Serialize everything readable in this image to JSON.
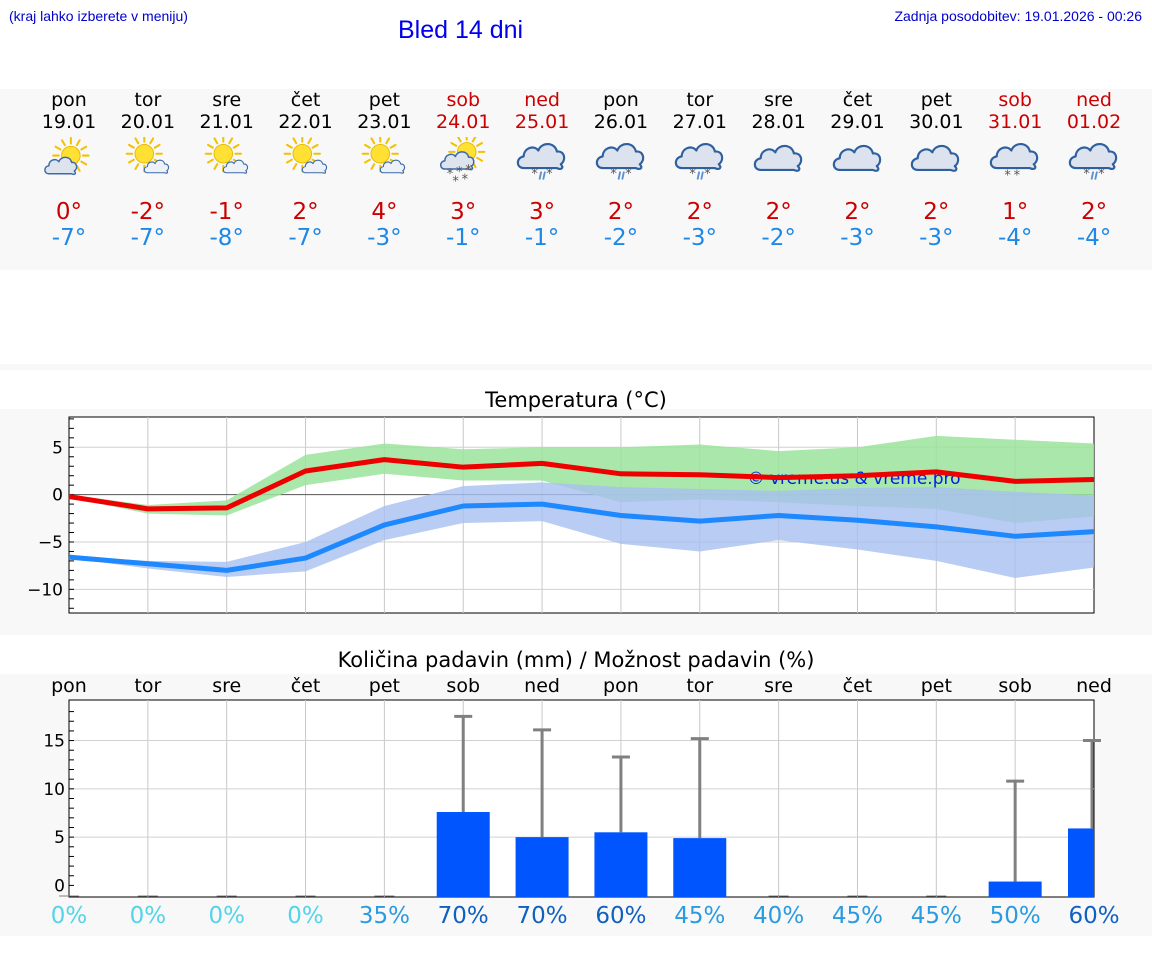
{
  "header": {
    "left_note": "(kraj lahko izberete v meniju)",
    "title": "Bled 14 dni",
    "updated": "Zadnja posodobitev: 19.01.2026 - 00:26"
  },
  "days": [
    {
      "name": "pon",
      "date": "19.01",
      "icon": "partly-sunny-icon",
      "tmax": "0°",
      "tmin": "-7°",
      "weekend": false
    },
    {
      "name": "tor",
      "date": "20.01",
      "icon": "mostly-sunny-icon",
      "tmax": "-2°",
      "tmin": "-7°",
      "weekend": false
    },
    {
      "name": "sre",
      "date": "21.01",
      "icon": "mostly-sunny-icon",
      "tmax": "-1°",
      "tmin": "-8°",
      "weekend": false
    },
    {
      "name": "čet",
      "date": "22.01",
      "icon": "mostly-sunny-icon",
      "tmax": "2°",
      "tmin": "-7°",
      "weekend": false
    },
    {
      "name": "pet",
      "date": "23.01",
      "icon": "mostly-sunny-icon",
      "tmax": "4°",
      "tmin": "-3°",
      "weekend": false
    },
    {
      "name": "sob",
      "date": "24.01",
      "icon": "partly-sunny-snow-icon",
      "tmax": "3°",
      "tmin": "-1°",
      "weekend": true
    },
    {
      "name": "ned",
      "date": "25.01",
      "icon": "cloudy-sleet-icon",
      "tmax": "3°",
      "tmin": "-1°",
      "weekend": true
    },
    {
      "name": "pon",
      "date": "26.01",
      "icon": "cloudy-sleet-icon",
      "tmax": "2°",
      "tmin": "-2°",
      "weekend": false
    },
    {
      "name": "tor",
      "date": "27.01",
      "icon": "cloudy-sleet-icon",
      "tmax": "2°",
      "tmin": "-3°",
      "weekend": false
    },
    {
      "name": "sre",
      "date": "28.01",
      "icon": "cloudy-icon",
      "tmax": "2°",
      "tmin": "-2°",
      "weekend": false
    },
    {
      "name": "čet",
      "date": "29.01",
      "icon": "cloudy-icon",
      "tmax": "2°",
      "tmin": "-3°",
      "weekend": false
    },
    {
      "name": "pet",
      "date": "30.01",
      "icon": "cloudy-icon",
      "tmax": "2°",
      "tmin": "-3°",
      "weekend": false
    },
    {
      "name": "sob",
      "date": "31.01",
      "icon": "cloudy-snow-icon",
      "tmax": "1°",
      "tmin": "-4°",
      "weekend": true
    },
    {
      "name": "ned",
      "date": "01.02",
      "icon": "cloudy-sleet-icon",
      "tmax": "2°",
      "tmin": "-4°",
      "weekend": true
    }
  ],
  "colors": {
    "max_line": "#ee0000",
    "min_line": "#1e88ff",
    "max_band": "#9be39b",
    "min_band": "#a8bff0",
    "overlap_band": "#7cc4a4",
    "bar": "#0055ff",
    "whisker": "#808080",
    "pct_low": "#55d3ea",
    "pct_mid": "#2a9be0",
    "pct_high": "#1060c0"
  },
  "chart_data": [
    {
      "type": "line",
      "title": "Temperatura (°C)",
      "watermark": "© vreme.us & vreme.pro",
      "x": [
        0,
        1,
        2,
        3,
        4,
        5,
        6,
        7,
        8,
        9,
        10,
        11,
        12,
        13
      ],
      "ylim": [
        -12.5,
        8.2
      ],
      "yticks": [
        5,
        0,
        -5,
        -10
      ],
      "ytick_labels": [
        "5",
        "0",
        "−5",
        "−10"
      ],
      "series": [
        {
          "name": "max",
          "values": [
            -0.2,
            -1.5,
            -1.4,
            2.5,
            3.7,
            2.9,
            3.3,
            2.2,
            2.1,
            1.8,
            2.0,
            2.4,
            1.4,
            1.6
          ],
          "band_low": [
            -0.3,
            -2.0,
            -2.2,
            1.0,
            2.2,
            1.5,
            1.5,
            -0.8,
            -0.5,
            -0.8,
            -1.2,
            -1.5,
            -3.0,
            -2.3
          ],
          "band_high": [
            0,
            -1.1,
            -0.6,
            4.2,
            5.4,
            4.8,
            5.0,
            5.0,
            5.3,
            4.6,
            5.0,
            6.2,
            5.8,
            5.4
          ]
        },
        {
          "name": "min",
          "values": [
            -6.6,
            -7.3,
            -8.0,
            -6.7,
            -3.2,
            -1.2,
            -1.0,
            -2.2,
            -2.8,
            -2.2,
            -2.7,
            -3.4,
            -4.4,
            -3.9
          ],
          "band_low": [
            -6.7,
            -7.8,
            -8.7,
            -8.1,
            -4.8,
            -3.0,
            -2.8,
            -5.2,
            -6.0,
            -4.8,
            -5.8,
            -7.0,
            -8.8,
            -7.7
          ],
          "band_high": [
            -6.5,
            -7.0,
            -7.1,
            -5.0,
            -1.2,
            0.9,
            1.3,
            0.8,
            0.6,
            0.4,
            0.7,
            0.8,
            0.3,
            -0.1
          ]
        }
      ]
    },
    {
      "type": "bar",
      "title": "Količina padavin (mm) / Možnost padavin (%)",
      "categories": [
        "pon",
        "tor",
        "sre",
        "čet",
        "pet",
        "sob",
        "ned",
        "pon",
        "tor",
        "sre",
        "čet",
        "pet",
        "sob",
        "ned"
      ],
      "ylim": [
        -1.2,
        19.2
      ],
      "yticks": [
        15,
        10,
        5,
        0
      ],
      "ytick_labels": [
        "15",
        "10",
        "5",
        "0"
      ],
      "values": [
        0,
        0,
        0,
        0,
        0,
        7.6,
        5.0,
        5.5,
        4.9,
        0,
        0,
        0,
        0.4,
        5.9
      ],
      "error_high": [
        0,
        0,
        0,
        0,
        0,
        17.5,
        16.1,
        13.3,
        15.2,
        0,
        0,
        0,
        10.8,
        15.0
      ],
      "probability": [
        "0%",
        "0%",
        "0%",
        "0%",
        "35%",
        "70%",
        "70%",
        "60%",
        "45%",
        "40%",
        "45%",
        "45%",
        "50%",
        "60%"
      ],
      "probability_values": [
        0,
        0,
        0,
        0,
        35,
        70,
        70,
        60,
        45,
        40,
        45,
        45,
        50,
        60
      ]
    }
  ]
}
